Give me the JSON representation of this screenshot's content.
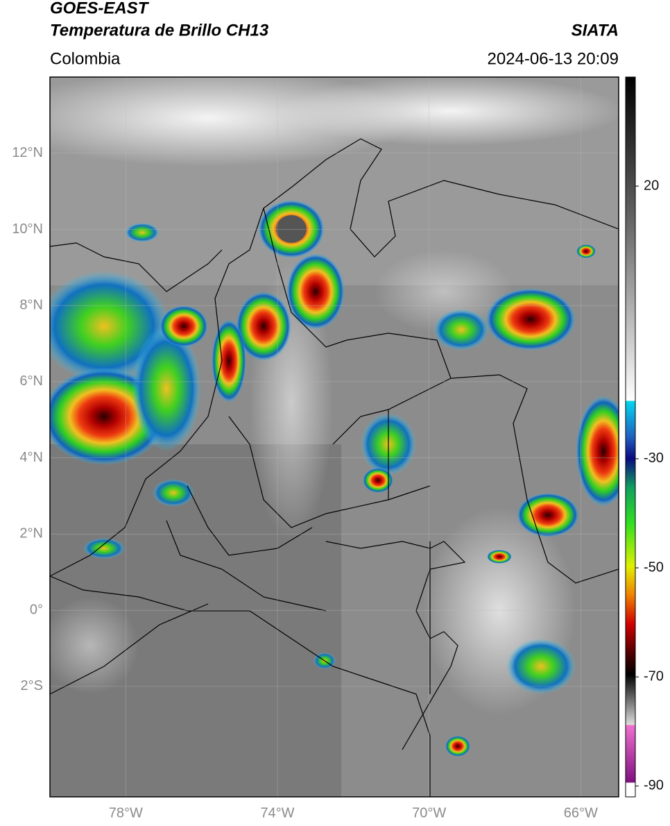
{
  "header": {
    "title": "GOES-EAST",
    "subtitle": "Temperatura de Brillo CH13",
    "source": "SIATA",
    "region": "Colombia",
    "datetime": "2024-06-13 20:09"
  },
  "map": {
    "lat_range": [
      -4.9,
      14
    ],
    "lon_range": [
      -80,
      -65
    ],
    "lat_ticks": [
      {
        "value": 12,
        "label": "12°N"
      },
      {
        "value": 10,
        "label": "10°N"
      },
      {
        "value": 8,
        "label": "8°N"
      },
      {
        "value": 6,
        "label": "6°N"
      },
      {
        "value": 4,
        "label": "4°N"
      },
      {
        "value": 2,
        "label": "2°N"
      },
      {
        "value": 0,
        "label": "0°"
      },
      {
        "value": -2,
        "label": "2°S"
      }
    ],
    "lon_ticks": [
      {
        "value": -78,
        "label": "78°W"
      },
      {
        "value": -74,
        "label": "74°W"
      },
      {
        "value": -70,
        "label": "70°W"
      },
      {
        "value": -66,
        "label": "66°W"
      }
    ]
  },
  "colorbar": {
    "lim": [
      -92,
      40
    ],
    "ticks": [
      20,
      -30,
      -50,
      -70,
      -90
    ]
  }
}
